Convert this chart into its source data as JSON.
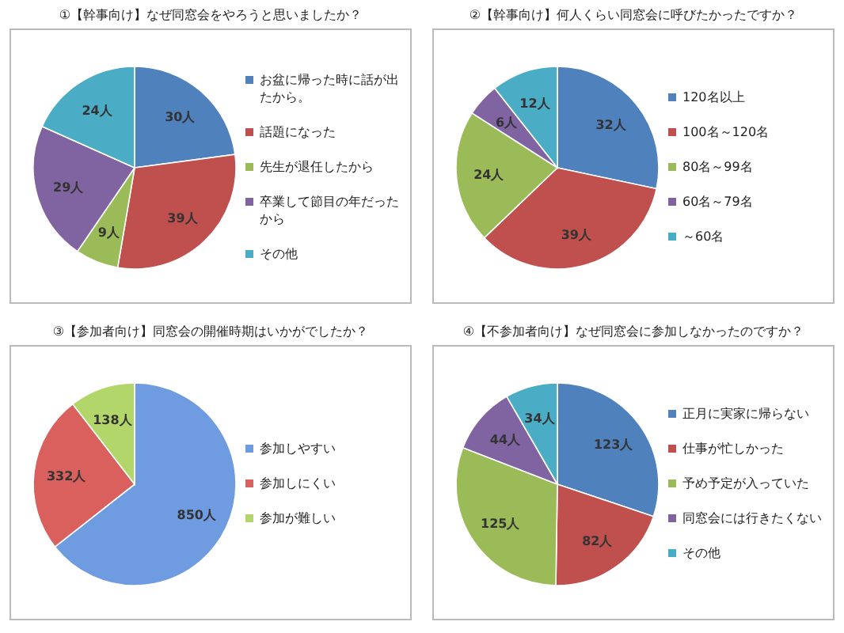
{
  "chart_data": [
    {
      "type": "pie",
      "title": "①【幹事向け】なぜ同窓会をやろうと思いましたか？",
      "categories": [
        "お盆に帰った時に話が出たから。",
        "話題になった",
        "先生が退任したから",
        "卒業して節目の年だったから",
        "その他"
      ],
      "values": [
        30,
        39,
        9,
        29,
        24
      ],
      "value_labels": [
        "30人",
        "39人",
        "9人",
        "29人",
        "24人"
      ],
      "colors": [
        "#4f81bd",
        "#c0504d",
        "#9bbb59",
        "#8064a2",
        "#4bacc6"
      ],
      "legend": "right"
    },
    {
      "type": "pie",
      "title": "②【幹事向け】何人くらい同窓会に呼びたかったですか？",
      "categories": [
        "120名以上",
        "100名～120名",
        "80名～99名",
        "60名～79名",
        "～60名"
      ],
      "values": [
        32,
        39,
        24,
        6,
        12
      ],
      "value_labels": [
        "32人",
        "39人",
        "24人",
        "6人",
        "12人"
      ],
      "colors": [
        "#4f81bd",
        "#c0504d",
        "#9bbb59",
        "#8064a2",
        "#4bacc6"
      ],
      "legend": "right"
    },
    {
      "type": "pie",
      "title": "③【参加者向け】同窓会の開催時期はいかがでしたか？",
      "categories": [
        "参加しやすい",
        "参加しにくい",
        "参加が難しい"
      ],
      "values": [
        850,
        332,
        138
      ],
      "value_labels": [
        "850人",
        "332人",
        "138人"
      ],
      "colors": [
        "#6f9be0",
        "#d9605d",
        "#b3d66a"
      ],
      "legend": "right"
    },
    {
      "type": "pie",
      "title": "④【不参加者向け】なぜ同窓会に参加しなかったのですか？",
      "categories": [
        "正月に実家に帰らない",
        "仕事が忙しかった",
        "予め予定が入っていた",
        "同窓会には行きたくない",
        "その他"
      ],
      "values": [
        123,
        82,
        125,
        44,
        34
      ],
      "value_labels": [
        "123人",
        "82人",
        "125人",
        "44人",
        "34人"
      ],
      "colors": [
        "#4f81bd",
        "#c0504d",
        "#9bbb59",
        "#8064a2",
        "#4bacc6"
      ],
      "legend": "right"
    }
  ]
}
